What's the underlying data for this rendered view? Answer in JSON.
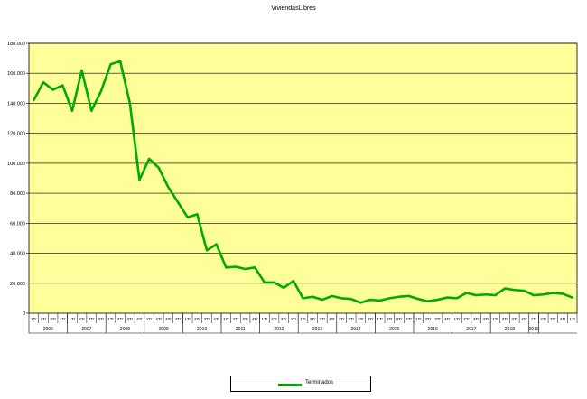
{
  "chart_data": {
    "type": "line",
    "title": "ViviendasLibres",
    "xlabel": "",
    "ylabel": "",
    "ylim": [
      0,
      180000
    ],
    "yticks": [
      "0",
      "20.000",
      "40.000",
      "60.000",
      "80.000",
      "100.000",
      "120.000",
      "140.000",
      "160.000",
      "180.000"
    ],
    "grid": true,
    "plot_background": "#FFFF99",
    "legend_position": "bottom-center",
    "quarter_labels": [
      "1Tr",
      "2Tr",
      "3Tr",
      "4Tr",
      "1Tr",
      "2Tr",
      "3Tr",
      "4Tr",
      "1Tr",
      "2Tr",
      "3Tr",
      "4Tr",
      "1Tr",
      "2Tr",
      "3Tr",
      "4Tr",
      "1Tr",
      "2Tr",
      "3Tr",
      "4Tr",
      "1Tr",
      "2Tr",
      "3Tr",
      "4Tr",
      "1Tr",
      "2Tr",
      "3Tr",
      "4Tr",
      "1Tr",
      "2Tr",
      "3Tr",
      "4Tr",
      "1Tr",
      "2Tr",
      "3Tr",
      "4Tr",
      "1Tr",
      "2Tr",
      "3Tr",
      "4Tr",
      "1Tr",
      "2Tr",
      "3Tr",
      "4Tr",
      "1Tr",
      "2Tr",
      "3Tr",
      "4Tr",
      "1Tr",
      "2Tr",
      "3Tr",
      "4Tr",
      "1Tr",
      "2Tr",
      "3Tr",
      "4Tr",
      "1Tr"
    ],
    "years": [
      {
        "label": "2006",
        "quarters": 4
      },
      {
        "label": "2007",
        "quarters": 4
      },
      {
        "label": "2008",
        "quarters": 4
      },
      {
        "label": "2009",
        "quarters": 4
      },
      {
        "label": "2010",
        "quarters": 4
      },
      {
        "label": "2011",
        "quarters": 4
      },
      {
        "label": "2012",
        "quarters": 4
      },
      {
        "label": "2013",
        "quarters": 4
      },
      {
        "label": "2014",
        "quarters": 4
      },
      {
        "label": "2015",
        "quarters": 4
      },
      {
        "label": "2016",
        "quarters": 4
      },
      {
        "label": "2017",
        "quarters": 4
      },
      {
        "label": "2018",
        "quarters": 4
      },
      {
        "label": "2019",
        "quarters": 1
      }
    ],
    "series": [
      {
        "name": "Terminados",
        "color": "#00AA00",
        "values": [
          142000,
          154000,
          149000,
          152000,
          135000,
          162000,
          135000,
          148000,
          166000,
          168000,
          140000,
          89000,
          103000,
          97000,
          84000,
          74000,
          64000,
          66000,
          42000,
          46000,
          30500,
          31000,
          29500,
          30500,
          20500,
          20500,
          17000,
          21500,
          10000,
          11000,
          9000,
          11500,
          10000,
          9500,
          7000,
          9000,
          8500,
          10000,
          11000,
          11500,
          9500,
          8000,
          9000,
          10500,
          10000,
          13500,
          12000,
          12500,
          12000,
          16500,
          15500,
          15000,
          12000,
          12500,
          13500,
          13000,
          10500
        ]
      }
    ]
  }
}
